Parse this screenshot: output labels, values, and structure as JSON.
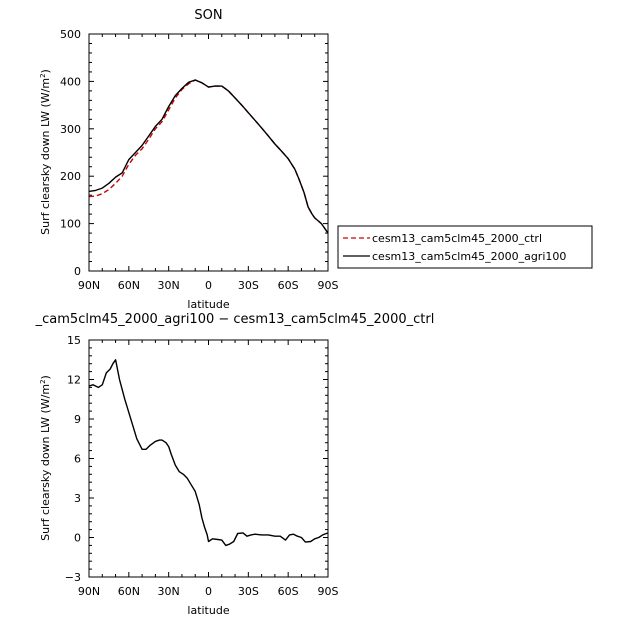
{
  "chart_data": [
    {
      "type": "line",
      "title": "SON",
      "xlabel": "latitude",
      "ylabel": "Surf clearsky down LW (W/m²)",
      "xlim": [
        90,
        -90
      ],
      "ylim": [
        0,
        500
      ],
      "x_ticks": [
        90,
        60,
        30,
        0,
        -30,
        -60,
        -90
      ],
      "x_tick_labels": [
        "90N",
        "60N",
        "30N",
        "0",
        "30S",
        "60S",
        "90S"
      ],
      "y_ticks": [
        0,
        100,
        200,
        300,
        400,
        500
      ],
      "y_tick_labels": [
        "0",
        "100",
        "200",
        "300",
        "400",
        "500"
      ],
      "legend_position": "right",
      "series": [
        {
          "name": "cesm13_cam5clm45_2000_ctrl",
          "color": "#cc0000",
          "style": "dashed",
          "x": [
            90,
            85,
            80,
            75,
            70,
            65,
            60,
            55,
            50,
            45,
            40,
            35,
            30,
            25,
            20,
            15,
            10,
            5,
            0,
            -5,
            -10,
            -15,
            -20,
            -25,
            -30,
            -35,
            -40,
            -45,
            -50,
            -55,
            -60,
            -65,
            -68,
            -72,
            -75,
            -78,
            -80,
            -85,
            -90
          ],
          "y": [
            157,
            158,
            163,
            172,
            185,
            200,
            225,
            244,
            258,
            278,
            300,
            315,
            340,
            365,
            383,
            395,
            403,
            397,
            388,
            390,
            390,
            380,
            365,
            350,
            334,
            318,
            302,
            285,
            268,
            253,
            237,
            215,
            195,
            165,
            135,
            120,
            112,
            100,
            80
          ]
        },
        {
          "name": "cesm13_cam5clm45_2000_agri100",
          "color": "#000000",
          "style": "solid",
          "x": [
            90,
            85,
            80,
            75,
            70,
            65,
            60,
            55,
            50,
            45,
            40,
            35,
            30,
            25,
            20,
            15,
            10,
            5,
            0,
            -5,
            -10,
            -15,
            -20,
            -25,
            -30,
            -35,
            -40,
            -45,
            -50,
            -55,
            -60,
            -65,
            -68,
            -72,
            -75,
            -78,
            -80,
            -85,
            -90
          ],
          "y": [
            168,
            170,
            175,
            185,
            198,
            207,
            235,
            250,
            265,
            285,
            305,
            320,
            347,
            370,
            385,
            398,
            403,
            397,
            388,
            390,
            390,
            380,
            365,
            350,
            334,
            318,
            302,
            285,
            268,
            253,
            237,
            215,
            195,
            165,
            135,
            120,
            112,
            100,
            80
          ]
        }
      ]
    },
    {
      "type": "line",
      "title": "_cam5clm45_2000_agri100 − cesm13_cam5clm45_2000_ctrl",
      "xlabel": "latitude",
      "ylabel": "Surf clearsky down LW (W/m²)",
      "xlim": [
        90,
        -90
      ],
      "ylim": [
        -3,
        15
      ],
      "x_ticks": [
        90,
        60,
        30,
        0,
        -30,
        -60,
        -90
      ],
      "x_tick_labels": [
        "90N",
        "60N",
        "30N",
        "0",
        "30S",
        "60S",
        "90S"
      ],
      "y_ticks": [
        -3,
        0,
        3,
        6,
        9,
        12,
        15
      ],
      "y_tick_labels": [
        "−3",
        "0",
        "3",
        "6",
        "9",
        "12",
        "15"
      ],
      "series": [
        {
          "color": "#000000",
          "style": "solid",
          "x": [
            90,
            87,
            83,
            80,
            77,
            74,
            72,
            70,
            67,
            63,
            60,
            57,
            54,
            50,
            47,
            44,
            40,
            37,
            35,
            32,
            30,
            28,
            25,
            22,
            19,
            16,
            13,
            10,
            7,
            5,
            3,
            1,
            0,
            -3,
            -7,
            -10,
            -13,
            -16,
            -19,
            -22,
            -26,
            -29,
            -32,
            -35,
            -40,
            -45,
            -50,
            -54,
            -58,
            -61,
            -64,
            -67,
            -70,
            -73,
            -77,
            -80,
            -83,
            -86,
            -90
          ],
          "y": [
            11.5,
            11.6,
            11.4,
            11.6,
            12.5,
            12.8,
            13.2,
            13.5,
            12.0,
            10.5,
            9.5,
            8.5,
            7.5,
            6.7,
            6.7,
            7.0,
            7.3,
            7.4,
            7.4,
            7.2,
            6.9,
            6.3,
            5.5,
            5.0,
            4.8,
            4.5,
            4.0,
            3.5,
            2.5,
            1.5,
            0.8,
            0.2,
            -0.3,
            -0.1,
            -0.15,
            -0.2,
            -0.6,
            -0.5,
            -0.3,
            0.3,
            0.35,
            0.1,
            0.2,
            0.25,
            0.2,
            0.2,
            0.1,
            0.1,
            -0.2,
            0.2,
            0.25,
            0.1,
            0.0,
            -0.35,
            -0.3,
            -0.1,
            0.0,
            0.2,
            0.35
          ]
        }
      ]
    }
  ]
}
